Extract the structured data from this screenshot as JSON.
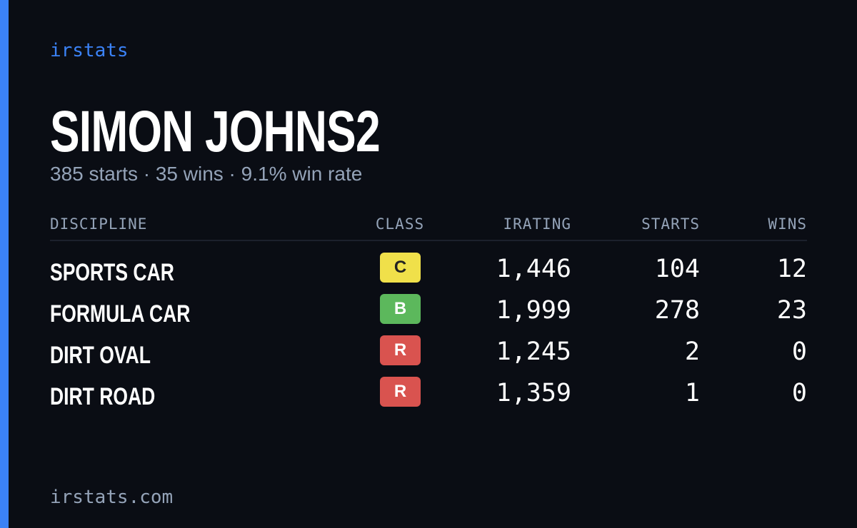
{
  "brand": "irstats",
  "driver": {
    "name": "SIMON JOHNS2",
    "summary": "385 starts · 35 wins · 9.1% win rate"
  },
  "table": {
    "headers": [
      "DISCIPLINE",
      "CLASS",
      "IRATING",
      "STARTS",
      "WINS"
    ],
    "rows": [
      {
        "discipline": "SPORTS CAR",
        "class": "C",
        "class_color": "#f0e04a",
        "irating": "1,446",
        "starts": "104",
        "wins": "12"
      },
      {
        "discipline": "FORMULA CAR",
        "class": "B",
        "class_color": "#5cb85c",
        "irating": "1,999",
        "starts": "278",
        "wins": "23"
      },
      {
        "discipline": "DIRT OVAL",
        "class": "R",
        "class_color": "#d9534f",
        "irating": "1,245",
        "starts": "2",
        "wins": "0"
      },
      {
        "discipline": "DIRT ROAD",
        "class": "R",
        "class_color": "#d9534f",
        "irating": "1,359",
        "starts": "1",
        "wins": "0"
      }
    ]
  },
  "footer": "irstats.com"
}
